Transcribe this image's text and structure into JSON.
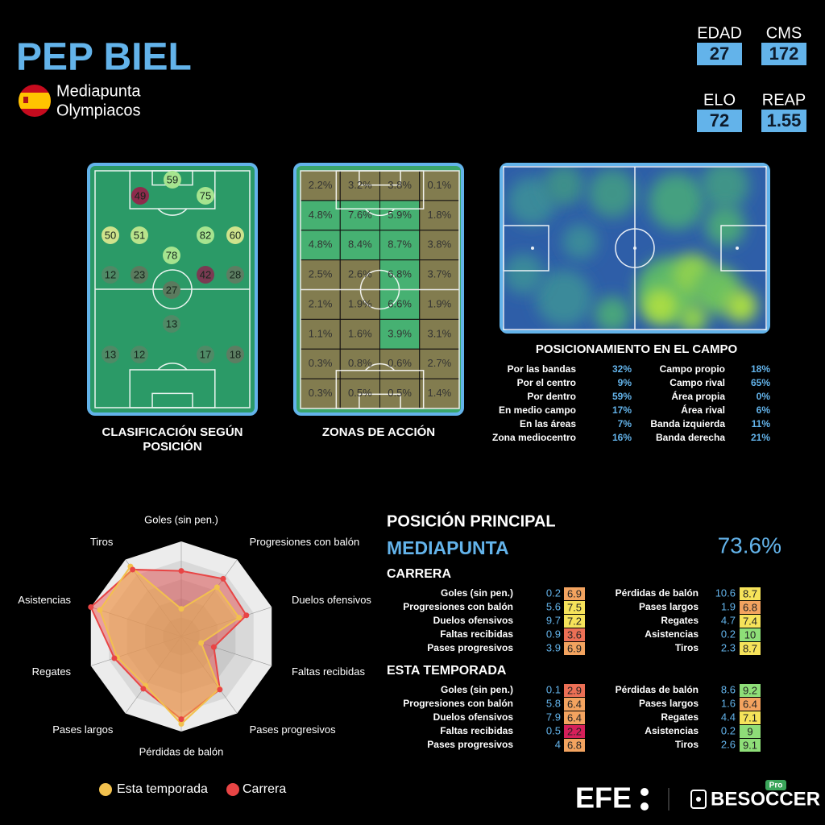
{
  "header": {
    "name": "PEP BIEL",
    "position": "Mediapunta",
    "club": "Olympiacos"
  },
  "stats": [
    {
      "label": "EDAD",
      "value": 27
    },
    {
      "label": "CMS",
      "value": 172
    },
    {
      "label": "ELO",
      "value": 72
    },
    {
      "label": "REAP",
      "value": 1.55
    }
  ],
  "position_map": {
    "title": "CLASIFICACIÓN SEGÚN POSICIÓN",
    "bubbles": [
      {
        "value": 59,
        "color": "#a6e48f"
      },
      {
        "value": 49,
        "color": "#8e2b4c"
      },
      {
        "value": 75,
        "color": "#a6e48f"
      },
      {
        "value": 50,
        "color": "#cfe38c"
      },
      {
        "value": 51,
        "color": "#b9e48c"
      },
      {
        "value": 82,
        "color": "#a6e48f"
      },
      {
        "value": 60,
        "color": "#cfe38c"
      },
      {
        "value": 78,
        "color": "#a6e48f"
      },
      {
        "value": 12,
        "color": "#4f8a66"
      },
      {
        "value": 23,
        "color": "#5b7a5e"
      },
      {
        "value": 42,
        "color": "#7a3a52"
      },
      {
        "value": 28,
        "color": "#5d7d62"
      },
      {
        "value": 27,
        "color": "#5b7a5e"
      },
      {
        "value": 13,
        "color": "#4f8a66"
      },
      {
        "value": 13,
        "color": "#4f8a66"
      },
      {
        "value": 12,
        "color": "#4f8a66"
      },
      {
        "value": 17,
        "color": "#4f8a66"
      },
      {
        "value": 18,
        "color": "#5d7d62"
      }
    ]
  },
  "action_zones": {
    "title": "ZONAS DE ACCIÓN",
    "values": [
      [
        2.2,
        3.2,
        3.8,
        0.1
      ],
      [
        4.8,
        7.6,
        5.9,
        1.8
      ],
      [
        4.8,
        8.4,
        8.7,
        3.8
      ],
      [
        2.5,
        2.6,
        6.8,
        3.7
      ],
      [
        2.1,
        1.9,
        6.6,
        1.9
      ],
      [
        1.1,
        1.6,
        3.9,
        3.1
      ],
      [
        0.3,
        0.8,
        0.6,
        2.7
      ],
      [
        0.3,
        0.5,
        0.5,
        1.4
      ]
    ],
    "value_labels": [
      [
        "2.2%",
        "3.2%",
        "3.8%",
        "0.1%"
      ],
      [
        "4.8%",
        "7.6%",
        "5.9%",
        "1.8%"
      ],
      [
        "4.8%",
        "8.4%",
        "8.7%",
        "3.8%"
      ],
      [
        "2.5%",
        "2.6%",
        "6.8%",
        "3.7%"
      ],
      [
        "2.1%",
        "1.9%",
        "6.6%",
        "1.9%"
      ],
      [
        "1.1%",
        "1.6%",
        "3.9%",
        "3.1%"
      ],
      [
        "0.3%",
        "0.8%",
        "0.6%",
        "2.7%"
      ],
      [
        "0.3%",
        "0.5%",
        "0.5%",
        "1.4%"
      ]
    ]
  },
  "positioning": {
    "title": "POSICIONAMIENTO EN EL CAMPO",
    "rows": [
      [
        "Por las bandas",
        "32%",
        "Campo propio",
        "18%"
      ],
      [
        "Por el centro",
        "9%",
        "Campo rival",
        "65%"
      ],
      [
        "Por dentro",
        "59%",
        "Área propia",
        "0%"
      ],
      [
        "En medio campo",
        "17%",
        "Área rival",
        "6%"
      ],
      [
        "En las áreas",
        "7%",
        "Banda izquierda",
        "11%"
      ],
      [
        "Zona mediocentro",
        "16%",
        "Banda derecha",
        "21%"
      ]
    ]
  },
  "radar": {
    "type": "radar",
    "rlim": [
      0,
      100
    ],
    "axes": [
      "Goles (sin pen.)",
      "Progresiones con balón",
      "Duelos ofensivos",
      "Faltas recibidas",
      "Pases progresivos",
      "Pérdidas de balón",
      "Pases largos",
      "Regates",
      "Asistencias",
      "Tiros"
    ],
    "series": [
      {
        "name": "Esta temporada",
        "color": "#f2c14e",
        "values": [
          29,
          64,
          64,
          22,
          68,
          92,
          64,
          71,
          90,
          91
        ]
      },
      {
        "name": "Carrera",
        "color": "#e84545",
        "values": [
          69,
          75,
          72,
          36,
          69,
          87,
          68,
          74,
          100,
          87
        ]
      }
    ]
  },
  "main_position": {
    "title": "POSICIÓN PRINCIPAL",
    "position": "MEDIAPUNTA",
    "score": "73.6%"
  },
  "career": {
    "title": "CARRERA",
    "rows": [
      {
        "label": "Goles (sin pen.)",
        "value": 0.2,
        "rating": 6.9
      },
      {
        "label": "Progresiones con balón",
        "value": 5.6,
        "rating": 7.5
      },
      {
        "label": "Duelos ofensivos",
        "value": 9.7,
        "rating": 7.2
      },
      {
        "label": "Faltas recibidas",
        "value": 0.9,
        "rating": 3.6
      },
      {
        "label": "Pases progresivos",
        "value": 3.9,
        "rating": 6.9
      },
      {
        "label": "Pérdidas de balón",
        "value": 10.6,
        "rating": 8.7
      },
      {
        "label": "Pases largos",
        "value": 1.9,
        "rating": 6.8
      },
      {
        "label": "Regates",
        "value": 4.7,
        "rating": 7.4
      },
      {
        "label": "Asistencias",
        "value": 0.2,
        "rating": 10
      },
      {
        "label": "Tiros",
        "value": 2.3,
        "rating": 8.7
      }
    ]
  },
  "season": {
    "title": "ESTA TEMPORADA",
    "rows": [
      {
        "label": "Goles (sin pen.)",
        "value": 0.1,
        "rating": 2.9
      },
      {
        "label": "Progresiones con balón",
        "value": 5.8,
        "rating": 6.4
      },
      {
        "label": "Duelos ofensivos",
        "value": 7.9,
        "rating": 6.4
      },
      {
        "label": "Faltas recibidas",
        "value": 0.5,
        "rating": 2.2
      },
      {
        "label": "Pases progresivos",
        "value": 4,
        "rating": 6.8
      },
      {
        "label": "Pérdidas de balón",
        "value": 8.6,
        "rating": 9.2
      },
      {
        "label": "Pases largos",
        "value": 1.6,
        "rating": 6.4
      },
      {
        "label": "Regates",
        "value": 4.4,
        "rating": 7.1
      },
      {
        "label": "Asistencias",
        "value": 0.2,
        "rating": 9
      },
      {
        "label": "Tiros",
        "value": 2.6,
        "rating": 9.1
      }
    ]
  },
  "footer": {
    "efe": "EFE",
    "besoccer": "BESOCCER",
    "pro": "Pro"
  }
}
